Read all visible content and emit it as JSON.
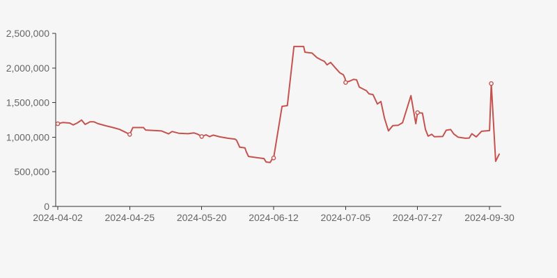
{
  "colors": {
    "background": "#f6f6f6",
    "line": "#c4524f",
    "marker_fill": "#f6f6f6",
    "axis": "#333333",
    "label": "#666666"
  },
  "chart_data": {
    "type": "line",
    "title": "",
    "xlabel": "",
    "ylabel": "",
    "legend": "none",
    "grid": "off",
    "ylim": [
      0,
      2500000
    ],
    "y_ticks": [
      {
        "value": 0,
        "label": "0"
      },
      {
        "value": 500000,
        "label": "500,000"
      },
      {
        "value": 1000000,
        "label": "1,000,000"
      },
      {
        "value": 1500000,
        "label": "1,500,000"
      },
      {
        "value": 2000000,
        "label": "2,000,000"
      },
      {
        "value": 2500000,
        "label": "2,500,000"
      }
    ],
    "x_ticks": [
      {
        "t": 0.0,
        "label": "2024-04-02"
      },
      {
        "t": 0.163,
        "label": "2024-04-25"
      },
      {
        "t": 0.326,
        "label": "2024-05-20"
      },
      {
        "t": 0.489,
        "label": "2024-06-12"
      },
      {
        "t": 0.652,
        "label": "2024-07-05"
      },
      {
        "t": 0.815,
        "label": "2024-07-27"
      },
      {
        "t": 0.978,
        "label": "2024-09-30"
      }
    ],
    "series": [
      {
        "name": "value",
        "marker_indices": [
          0,
          14,
          25,
          43,
          59,
          77,
          95
        ],
        "marker_values": [
          1195000,
          1040000,
          1010000,
          700000,
          1790000,
          1355000,
          1775000
        ],
        "points": [
          [
            0.0,
            1195000
          ],
          [
            0.011,
            1212000
          ],
          [
            0.027,
            1205000
          ],
          [
            0.035,
            1178000
          ],
          [
            0.044,
            1205000
          ],
          [
            0.054,
            1248000
          ],
          [
            0.062,
            1185000
          ],
          [
            0.073,
            1222000
          ],
          [
            0.082,
            1222000
          ],
          [
            0.091,
            1196000
          ],
          [
            0.109,
            1165000
          ],
          [
            0.125,
            1140000
          ],
          [
            0.14,
            1112000
          ],
          [
            0.153,
            1072000
          ],
          [
            0.163,
            1040000
          ],
          [
            0.17,
            1140000
          ],
          [
            0.194,
            1140000
          ],
          [
            0.199,
            1103000
          ],
          [
            0.235,
            1090000
          ],
          [
            0.251,
            1048000
          ],
          [
            0.259,
            1082000
          ],
          [
            0.274,
            1057000
          ],
          [
            0.295,
            1050000
          ],
          [
            0.308,
            1062000
          ],
          [
            0.317,
            1043000
          ],
          [
            0.326,
            1010000
          ],
          [
            0.336,
            1034000
          ],
          [
            0.344,
            1008000
          ],
          [
            0.352,
            1030000
          ],
          [
            0.367,
            1005000
          ],
          [
            0.385,
            985000
          ],
          [
            0.402,
            972000
          ],
          [
            0.405,
            955000
          ],
          [
            0.412,
            856000
          ],
          [
            0.424,
            845000
          ],
          [
            0.427,
            790000
          ],
          [
            0.432,
            722000
          ],
          [
            0.443,
            712000
          ],
          [
            0.456,
            700000
          ],
          [
            0.467,
            692000
          ],
          [
            0.472,
            642000
          ],
          [
            0.481,
            635000
          ],
          [
            0.486,
            688000
          ],
          [
            0.489,
            700000
          ],
          [
            0.508,
            1446000
          ],
          [
            0.52,
            1456000
          ],
          [
            0.535,
            2310000
          ],
          [
            0.557,
            2310000
          ],
          [
            0.56,
            2228000
          ],
          [
            0.576,
            2215000
          ],
          [
            0.587,
            2150000
          ],
          [
            0.596,
            2118000
          ],
          [
            0.604,
            2095000
          ],
          [
            0.61,
            2045000
          ],
          [
            0.618,
            2080000
          ],
          [
            0.629,
            2000000
          ],
          [
            0.639,
            1930000
          ],
          [
            0.647,
            1902000
          ],
          [
            0.651,
            1845000
          ],
          [
            0.652,
            1790000
          ],
          [
            0.662,
            1812000
          ],
          [
            0.67,
            1835000
          ],
          [
            0.677,
            1828000
          ],
          [
            0.683,
            1725000
          ],
          [
            0.691,
            1698000
          ],
          [
            0.699,
            1672000
          ],
          [
            0.705,
            1627000
          ],
          [
            0.714,
            1615000
          ],
          [
            0.724,
            1480000
          ],
          [
            0.732,
            1515000
          ],
          [
            0.74,
            1275000
          ],
          [
            0.749,
            1091000
          ],
          [
            0.759,
            1168000
          ],
          [
            0.771,
            1172000
          ],
          [
            0.781,
            1210000
          ],
          [
            0.8,
            1600000
          ],
          [
            0.811,
            1195000
          ],
          [
            0.815,
            1355000
          ],
          [
            0.826,
            1348000
          ],
          [
            0.833,
            1110000
          ],
          [
            0.839,
            1015000
          ],
          [
            0.847,
            1042000
          ],
          [
            0.853,
            1007000
          ],
          [
            0.872,
            1010000
          ],
          [
            0.88,
            1100000
          ],
          [
            0.89,
            1110000
          ],
          [
            0.897,
            1047000
          ],
          [
            0.907,
            1000000
          ],
          [
            0.923,
            985000
          ],
          [
            0.932,
            988000
          ],
          [
            0.938,
            1050000
          ],
          [
            0.948,
            1005000
          ],
          [
            0.96,
            1085000
          ],
          [
            0.971,
            1092000
          ],
          [
            0.978,
            1095000
          ],
          [
            0.982,
            1775000
          ],
          [
            0.992,
            652000
          ],
          [
            1.0,
            755000
          ]
        ]
      }
    ]
  }
}
